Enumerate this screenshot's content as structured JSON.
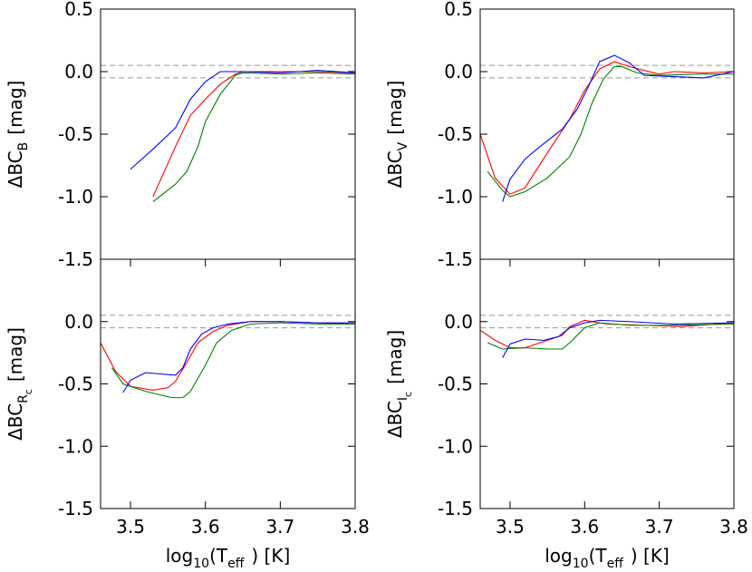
{
  "chart_data": [
    {
      "type": "line",
      "ylabel": [
        {
          "text": "ΔBC",
          "level": 0
        },
        {
          "text": "B",
          "level": 1
        },
        {
          "text": "[mag]",
          "level": 0
        }
      ],
      "xlim": [
        3.46,
        3.8
      ],
      "ylim": [
        -1.5,
        0.5
      ],
      "yticks": [
        {
          "value": -1.5,
          "label": "-1.5"
        },
        {
          "value": -1,
          "label": "-1.0"
        },
        -0.5,
        {
          "value": 0,
          "label": "0.0"
        },
        0.5
      ],
      "hlines": [
        0.05,
        -0.05
      ],
      "hline_color": "#999999",
      "series": [
        {
          "color": "#ff0000",
          "x": [
            3.53,
            3.56,
            3.58,
            3.6,
            3.62,
            3.64,
            3.65,
            3.7,
            3.75,
            3.8
          ],
          "values": [
            -1.0,
            -0.6,
            -0.35,
            -0.22,
            -0.1,
            -0.02,
            0.0,
            0.0,
            0.0,
            -0.01
          ]
        },
        {
          "color": "#008000",
          "x": [
            3.53,
            3.56,
            3.575,
            3.59,
            3.6,
            3.62,
            3.64,
            3.65,
            3.7,
            3.75,
            3.8
          ],
          "values": [
            -1.04,
            -0.9,
            -0.8,
            -0.6,
            -0.4,
            -0.18,
            -0.03,
            -0.01,
            -0.02,
            -0.01,
            -0.02
          ]
        },
        {
          "color": "#0000ff",
          "x": [
            3.5,
            3.53,
            3.56,
            3.58,
            3.6,
            3.62,
            3.65,
            3.7,
            3.75,
            3.8
          ],
          "values": [
            -0.78,
            -0.62,
            -0.45,
            -0.22,
            -0.08,
            0.0,
            0.0,
            -0.01,
            0.01,
            -0.01
          ]
        }
      ]
    },
    {
      "type": "line",
      "ylabel": [
        {
          "text": "ΔBC",
          "level": 0
        },
        {
          "text": "V",
          "level": 1
        },
        {
          "text": "[mag]",
          "level": 0
        }
      ],
      "xlim": [
        3.46,
        3.8
      ],
      "ylim": [
        -1.5,
        0.5
      ],
      "yticks": [
        {
          "value": -1.5,
          "label": "-1.5"
        },
        {
          "value": -1,
          "label": "-1.0"
        },
        -0.5,
        {
          "value": 0,
          "label": "0.0"
        },
        0.5
      ],
      "hlines": [
        0.05,
        -0.05
      ],
      "hline_color": "#999999",
      "series": [
        {
          "color": "#ff0000",
          "x": [
            3.46,
            3.48,
            3.5,
            3.52,
            3.55,
            3.58,
            3.6,
            3.62,
            3.64,
            3.66,
            3.7,
            3.72,
            3.76,
            3.8
          ],
          "values": [
            -0.5,
            -0.85,
            -0.98,
            -0.93,
            -0.65,
            -0.38,
            -0.15,
            0.02,
            0.08,
            0.04,
            -0.02,
            0.0,
            -0.01,
            0.0
          ]
        },
        {
          "color": "#008000",
          "x": [
            3.47,
            3.49,
            3.5,
            3.52,
            3.55,
            3.58,
            3.595,
            3.61,
            3.625,
            3.64,
            3.65,
            3.67,
            3.7,
            3.75,
            3.8
          ],
          "values": [
            -0.8,
            -0.95,
            -1.0,
            -0.96,
            -0.85,
            -0.68,
            -0.5,
            -0.25,
            -0.06,
            0.04,
            0.04,
            -0.01,
            -0.03,
            -0.02,
            -0.02
          ]
        },
        {
          "color": "#0000ff",
          "x": [
            3.49,
            3.5,
            3.52,
            3.54,
            3.57,
            3.59,
            3.605,
            3.62,
            3.64,
            3.66,
            3.68,
            3.72,
            3.76,
            3.8
          ],
          "values": [
            -1.04,
            -0.86,
            -0.7,
            -0.6,
            -0.46,
            -0.3,
            -0.12,
            0.08,
            0.13,
            0.07,
            -0.03,
            -0.04,
            -0.05,
            0.0
          ]
        }
      ]
    },
    {
      "type": "line",
      "ylabel": [
        {
          "text": "ΔBC",
          "level": 0
        },
        {
          "text": "R",
          "level": 1
        },
        {
          "text": "c",
          "level": 2
        },
        {
          "text": "[mag]",
          "level": 0
        }
      ],
      "xlabel": [
        {
          "text": "log",
          "level": 0
        },
        {
          "text": "10",
          "level": 1
        },
        {
          "text": "(T",
          "level": 0
        },
        {
          "text": "eff",
          "level": 1
        },
        {
          "text": ")  [K]",
          "level": 0
        }
      ],
      "xlim": [
        3.46,
        3.8
      ],
      "ylim": [
        -1.5,
        0.5
      ],
      "xticks": [
        3.5,
        3.6,
        3.7,
        3.8
      ],
      "yticks": [
        {
          "value": -1.5,
          "label": "-1.5"
        },
        {
          "value": -1,
          "label": "-1.0"
        },
        -0.5,
        {
          "value": 0,
          "label": "0.0"
        }
      ],
      "hlines": [
        0.05,
        -0.05
      ],
      "hline_color": "#999999",
      "series": [
        {
          "color": "#ff0000",
          "x": [
            3.46,
            3.48,
            3.5,
            3.53,
            3.55,
            3.56,
            3.575,
            3.59,
            3.61,
            3.63,
            3.66,
            3.7,
            3.75,
            3.8
          ],
          "values": [
            -0.17,
            -0.4,
            -0.52,
            -0.55,
            -0.53,
            -0.48,
            -0.33,
            -0.17,
            -0.08,
            -0.03,
            0.0,
            0.0,
            -0.01,
            -0.02
          ]
        },
        {
          "color": "#008000",
          "x": [
            3.475,
            3.49,
            3.52,
            3.555,
            3.57,
            3.58,
            3.6,
            3.615,
            3.635,
            3.66,
            3.7,
            3.75,
            3.8
          ],
          "values": [
            -0.37,
            -0.5,
            -0.56,
            -0.61,
            -0.61,
            -0.56,
            -0.35,
            -0.17,
            -0.07,
            -0.02,
            -0.01,
            -0.02,
            -0.02
          ]
        },
        {
          "color": "#0000ff",
          "x": [
            3.49,
            3.5,
            3.52,
            3.54,
            3.56,
            3.57,
            3.58,
            3.595,
            3.61,
            3.63,
            3.66,
            3.7,
            3.75,
            3.8
          ],
          "values": [
            -0.57,
            -0.47,
            -0.41,
            -0.42,
            -0.43,
            -0.37,
            -0.22,
            -0.1,
            -0.05,
            -0.02,
            0.0,
            0.0,
            -0.01,
            -0.01
          ]
        }
      ]
    },
    {
      "type": "line",
      "ylabel": [
        {
          "text": "ΔBC",
          "level": 0
        },
        {
          "text": "I",
          "level": 1
        },
        {
          "text": "c",
          "level": 2
        },
        {
          "text": "[mag]",
          "level": 0
        }
      ],
      "xlabel": [
        {
          "text": "log",
          "level": 0
        },
        {
          "text": "10",
          "level": 1
        },
        {
          "text": "(T",
          "level": 0
        },
        {
          "text": "eff",
          "level": 1
        },
        {
          "text": ")  [K]",
          "level": 0
        }
      ],
      "xlim": [
        3.46,
        3.8
      ],
      "ylim": [
        -1.5,
        0.5
      ],
      "xticks": [
        3.5,
        3.6,
        3.7,
        3.8
      ],
      "yticks": [
        {
          "value": -1.5,
          "label": "-1.5"
        },
        {
          "value": -1,
          "label": "-1.0"
        },
        -0.5,
        {
          "value": 0,
          "label": "0.0"
        }
      ],
      "hlines": [
        0.05,
        -0.05
      ],
      "hline_color": "#999999",
      "series": [
        {
          "color": "#ff0000",
          "x": [
            3.46,
            3.48,
            3.5,
            3.52,
            3.55,
            3.57,
            3.58,
            3.6,
            3.63,
            3.68,
            3.73,
            3.8
          ],
          "values": [
            -0.07,
            -0.15,
            -0.21,
            -0.21,
            -0.15,
            -0.11,
            -0.04,
            0.01,
            -0.02,
            -0.03,
            -0.04,
            -0.01
          ]
        },
        {
          "color": "#008000",
          "x": [
            3.47,
            3.49,
            3.52,
            3.55,
            3.57,
            3.58,
            3.6,
            3.62,
            3.66,
            3.72,
            3.8
          ],
          "values": [
            -0.17,
            -0.22,
            -0.21,
            -0.22,
            -0.22,
            -0.17,
            -0.05,
            -0.01,
            -0.03,
            -0.03,
            -0.02
          ]
        },
        {
          "color": "#0000ff",
          "x": [
            3.49,
            3.5,
            3.52,
            3.545,
            3.565,
            3.58,
            3.6,
            3.62,
            3.66,
            3.72,
            3.8
          ],
          "values": [
            -0.29,
            -0.18,
            -0.14,
            -0.15,
            -0.12,
            -0.05,
            -0.01,
            0.01,
            0.0,
            -0.02,
            -0.01
          ]
        }
      ]
    }
  ]
}
